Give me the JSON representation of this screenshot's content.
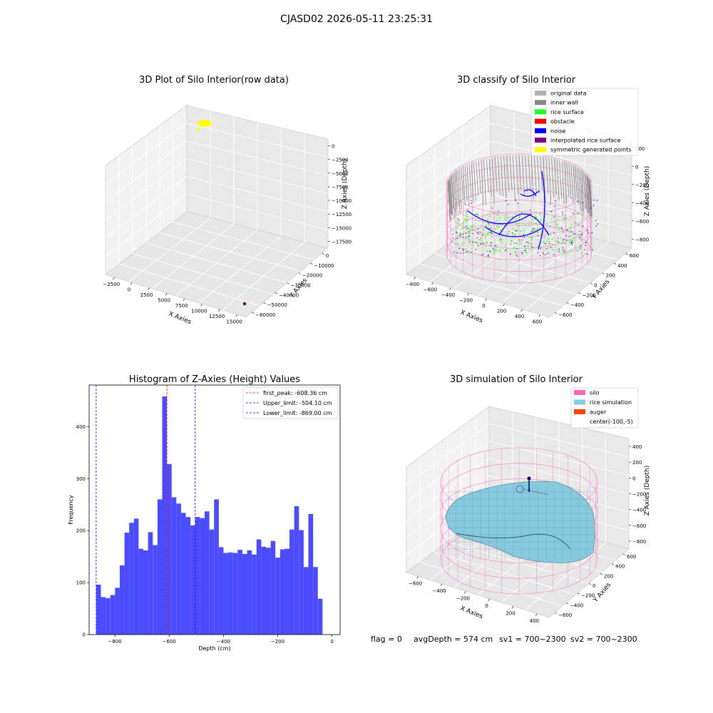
{
  "figure_title": "CJASD02 2026-05-11 23:25:31",
  "footer": {
    "flag": "flag = 0",
    "avg_depth": "avgDepth = 574 cm",
    "sv1": "sv1 = 700~2300",
    "sv2": "sv2 = 700~2300"
  },
  "colors": {
    "silo_wire": "#f472b6",
    "rice_surface": "#22ff22",
    "inner_wall": "#888888",
    "noise": "#0000ff",
    "interpolated": "#800080",
    "symmetric": "#ffff00",
    "histogram_bar": "#4b4bff",
    "rice_sim": "#87cadf",
    "auger": "#ff4500",
    "first_peak_line": "#ff0000",
    "limit_line": "#0000ff"
  },
  "chart_data": [
    {
      "type": "scatter",
      "subtype": "3d",
      "title": "3D Plot of Silo Interior(row data)",
      "xlabel": "X Axies",
      "ylabel": "Y Axies",
      "zlabel": "Z Axies (Depth)",
      "x_ticks": [
        "−2500",
        "0",
        "2500",
        "5000",
        "7500",
        "10000",
        "12500",
        "15000"
      ],
      "y_ticks": [
        "0",
        "−10000",
        "−20000",
        "−30000",
        "−40000",
        "−50000",
        "−60000"
      ],
      "z_ticks": [
        "0",
        "−2500",
        "−5000",
        "−7500",
        "−10000",
        "−12500",
        "−15000",
        "−17500"
      ],
      "series": [
        {
          "color": "#ffff00",
          "points": [
            {
              "x": -1200,
              "y": -2000,
              "z": 0
            }
          ]
        },
        {
          "color": "#5a0050",
          "points": [
            {
              "x": 15000,
              "y": -60000,
              "z": -17500
            }
          ]
        }
      ]
    },
    {
      "type": "scatter",
      "subtype": "3d",
      "title": "3D classify of Silo Interior",
      "xlabel": "X Axies",
      "ylabel": "Y Axies",
      "zlabel": "Z Axies (Depth)",
      "x_ticks": [
        "−800",
        "−600",
        "−400",
        "−200",
        "0",
        "200",
        "400",
        "600"
      ],
      "y_ticks": [
        "600",
        "400",
        "200",
        "0",
        "−200",
        "−400",
        "−600"
      ],
      "z_ticks": [
        "200",
        "0",
        "−200",
        "−400",
        "−600",
        "−800"
      ],
      "legend": [
        {
          "label": "original data",
          "color": "#b0b0b0"
        },
        {
          "label": "inner wall",
          "color": "#888888"
        },
        {
          "label": "rice surface",
          "color": "#22ff22"
        },
        {
          "label": "obstacle",
          "color": "#ff0000"
        },
        {
          "label": "noise",
          "color": "#0000ff"
        },
        {
          "label": "interpolated rice surface",
          "color": "#800080"
        },
        {
          "label": "symmetric generated points",
          "color": "#ffff00"
        }
      ],
      "legend_position": "top-right"
    },
    {
      "type": "bar",
      "subtype": "histogram",
      "title": "Histogram of Z-Axies (Height) Values",
      "xlabel": "Depth (cm)",
      "ylabel": "Frequency",
      "xlim": [
        -895,
        30
      ],
      "ylim": [
        0,
        480
      ],
      "x_ticks": [
        -800,
        -600,
        -400,
        -200,
        0
      ],
      "x_tick_labels": [
        "−800",
        "−600",
        "−400",
        "−200",
        "0"
      ],
      "y_ticks": [
        0,
        100,
        200,
        300,
        400
      ],
      "bin_start": -869,
      "bin_width": 17.38,
      "values": [
        96,
        72,
        70,
        76,
        90,
        133,
        196,
        215,
        223,
        165,
        162,
        197,
        172,
        260,
        458,
        328,
        264,
        252,
        234,
        226,
        210,
        226,
        224,
        237,
        202,
        260,
        168,
        157,
        158,
        157,
        163,
        155,
        162,
        154,
        183,
        169,
        167,
        180,
        148,
        164,
        165,
        202,
        247,
        201,
        130,
        232,
        130,
        69
      ],
      "vlines": [
        {
          "label": "first_peak: -608.36 cm",
          "x": -608.36,
          "color": "#ff0000"
        },
        {
          "label": "Upper_limit: -504.10 cm",
          "x": -504.1,
          "color": "#0000ff"
        },
        {
          "label": "Lower_limit: -869.00 cm",
          "x": -869.0,
          "color": "#0000ff"
        }
      ],
      "legend_position": "top-right",
      "grid": false
    },
    {
      "type": "area",
      "subtype": "3d-surface",
      "title": "3D simulation of Silo Interior",
      "xlabel": "X Axies",
      "ylabel": "Y Axies",
      "zlabel": "Z Axies (Depth)",
      "x_ticks": [
        "−600",
        "−400",
        "−200",
        "0",
        "200",
        "400"
      ],
      "y_ticks": [
        "600",
        "400",
        "200",
        "0",
        "−200",
        "−400",
        "−600"
      ],
      "z_ticks": [
        "400",
        "200",
        "0",
        "−200",
        "−400",
        "−600",
        "−800"
      ],
      "legend": [
        {
          "label": "silo",
          "color": "#ff69b4"
        },
        {
          "label": "rice simulation",
          "color": "#87cadf"
        },
        {
          "label": "auger",
          "color": "#ff4500"
        },
        {
          "label": "center(-100,-5)",
          "color": ""
        }
      ],
      "legend_position": "top-right"
    }
  ]
}
